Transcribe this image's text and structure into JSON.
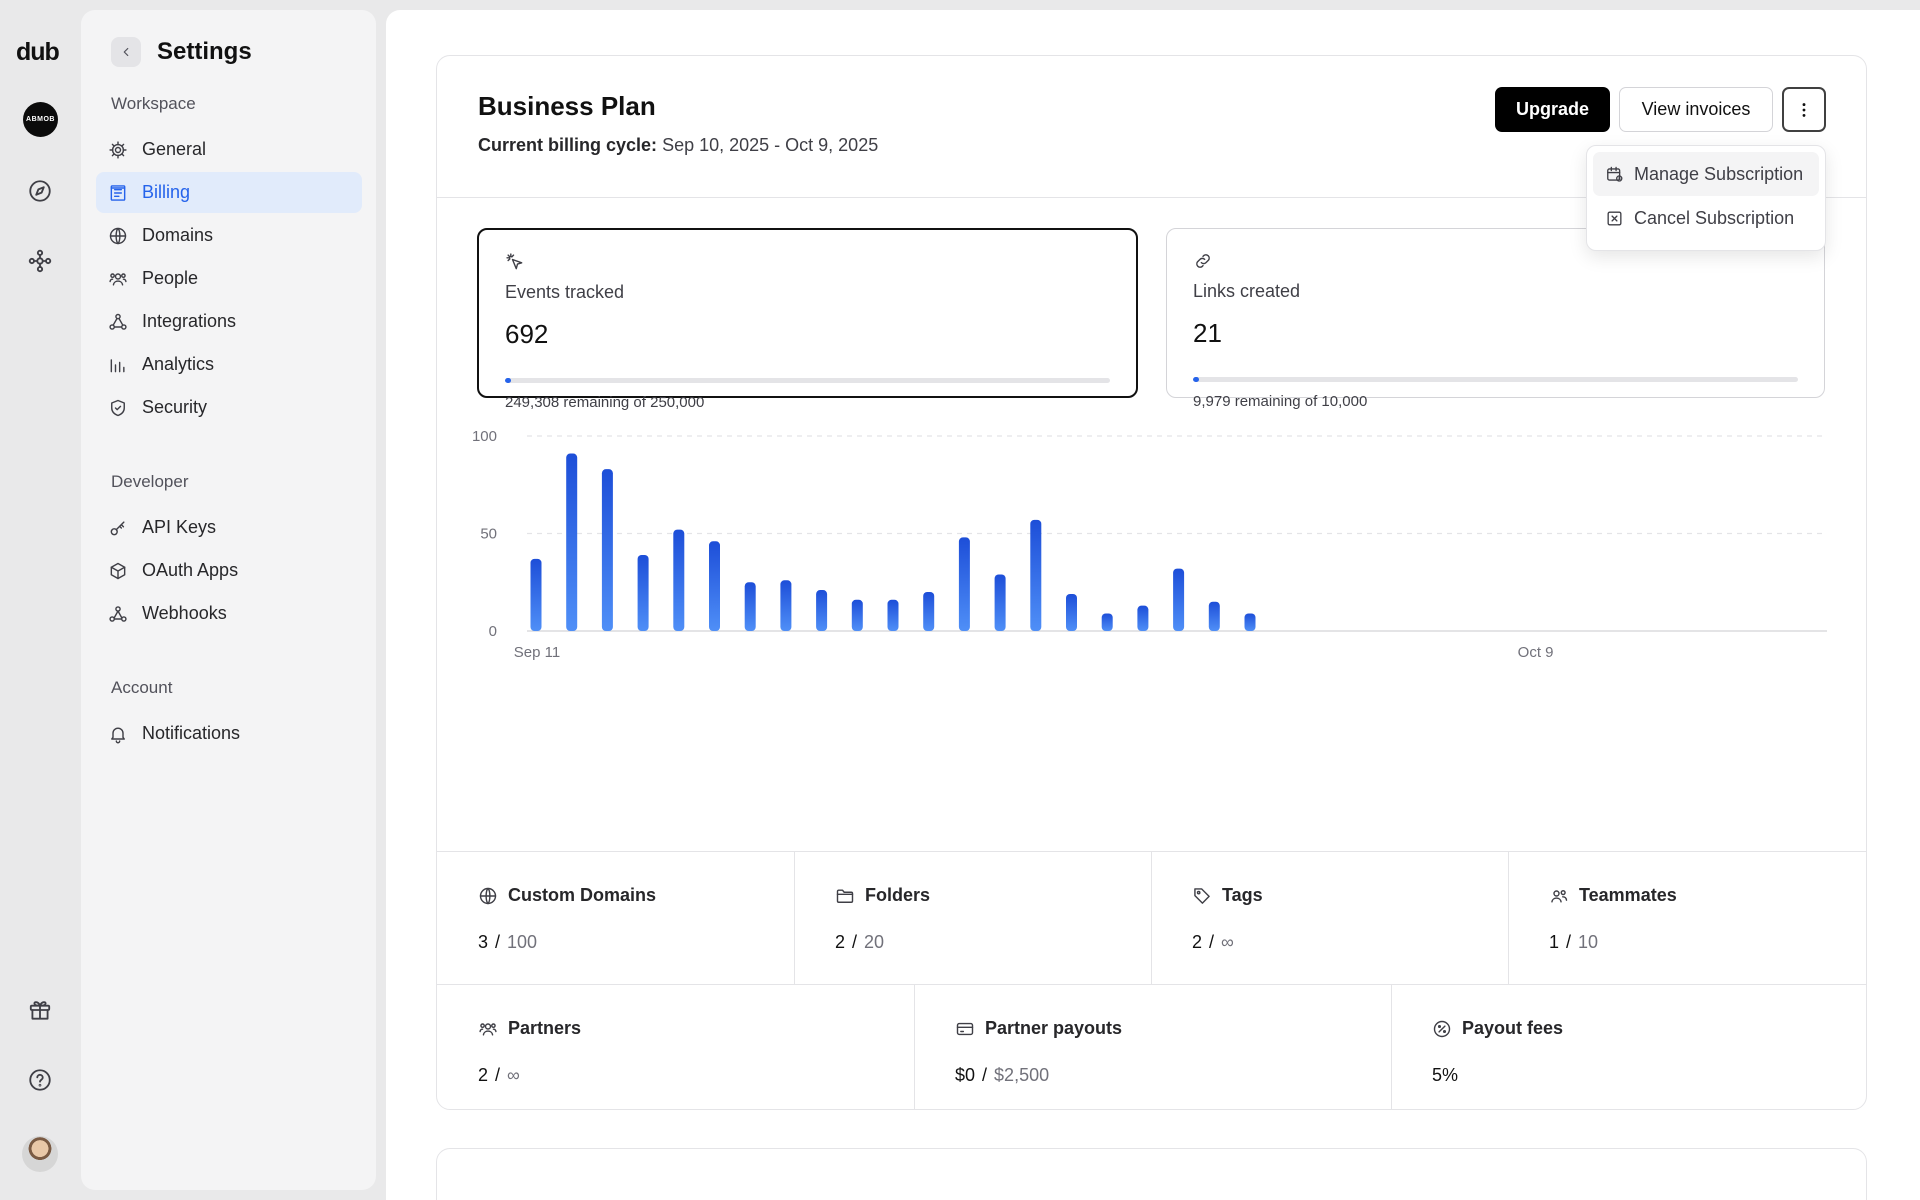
{
  "rail": {
    "logo": "dub",
    "workspace_avatar": "ABMOB",
    "icons": [
      "compass-icon",
      "network-icon",
      "gift-icon",
      "help-icon"
    ]
  },
  "sidebar": {
    "title": "Settings",
    "sections": [
      {
        "label": "Workspace",
        "items": [
          {
            "label": "General",
            "icon": "gear-icon"
          },
          {
            "label": "Billing",
            "icon": "receipt-icon",
            "active": true
          },
          {
            "label": "Domains",
            "icon": "globe-icon"
          },
          {
            "label": "People",
            "icon": "users-icon"
          },
          {
            "label": "Integrations",
            "icon": "integrations-icon"
          },
          {
            "label": "Analytics",
            "icon": "analytics-icon"
          },
          {
            "label": "Security",
            "icon": "shield-icon"
          }
        ]
      },
      {
        "label": "Developer",
        "items": [
          {
            "label": "API Keys",
            "icon": "key-icon"
          },
          {
            "label": "OAuth Apps",
            "icon": "cube-icon"
          },
          {
            "label": "Webhooks",
            "icon": "webhook-icon"
          }
        ]
      },
      {
        "label": "Account",
        "items": [
          {
            "label": "Notifications",
            "icon": "bell-icon"
          }
        ]
      }
    ]
  },
  "plan": {
    "title": "Business Plan",
    "cycle_label": "Current billing cycle:",
    "cycle_value": "Sep 10, 2025 - Oct 9, 2025",
    "upgrade_label": "Upgrade",
    "invoices_label": "View invoices"
  },
  "menu": {
    "items": [
      {
        "label": "Manage Subscription",
        "icon": "calendar-icon"
      },
      {
        "label": "Cancel Subscription",
        "icon": "x-square-icon"
      }
    ]
  },
  "usage": [
    {
      "label": "Events tracked",
      "value": "692",
      "remaining": "249,308 remaining of 250,000",
      "used_fraction": 0.0028,
      "icon": "cursor-click-icon"
    },
    {
      "label": "Links created",
      "value": "21",
      "remaining": "9,979 remaining of 10,000",
      "used_fraction": 0.0021,
      "icon": "link-icon"
    }
  ],
  "chart_data": {
    "type": "bar",
    "x_start_label": "Sep 11",
    "x_end_label": "Oct 9",
    "ylim": [
      0,
      100
    ],
    "yticks": [
      0,
      50,
      100
    ],
    "slots": 29,
    "values": [
      37,
      91,
      83,
      39,
      52,
      46,
      25,
      26,
      21,
      16,
      16,
      20,
      48,
      29,
      57,
      19,
      9,
      13,
      32,
      15,
      9
    ],
    "grid": true,
    "color": "#2563eb"
  },
  "stats_row1": [
    {
      "label": "Custom Domains",
      "value": "3",
      "limit": "100",
      "icon": "globe-icon"
    },
    {
      "label": "Folders",
      "value": "2",
      "limit": "20",
      "icon": "folder-icon"
    },
    {
      "label": "Tags",
      "value": "2",
      "limit": "∞",
      "icon": "tag-icon"
    },
    {
      "label": "Teammates",
      "value": "1",
      "limit": "10",
      "icon": "users-icon"
    }
  ],
  "stats_row2": [
    {
      "label": "Partners",
      "value": "2",
      "limit": "∞",
      "icon": "users-icon"
    },
    {
      "label": "Partner payouts",
      "value": "$0",
      "limit": "$2,500",
      "icon": "credit-card-icon"
    },
    {
      "label": "Payout fees",
      "value": "5%",
      "limit": "",
      "icon": "percent-icon"
    }
  ]
}
